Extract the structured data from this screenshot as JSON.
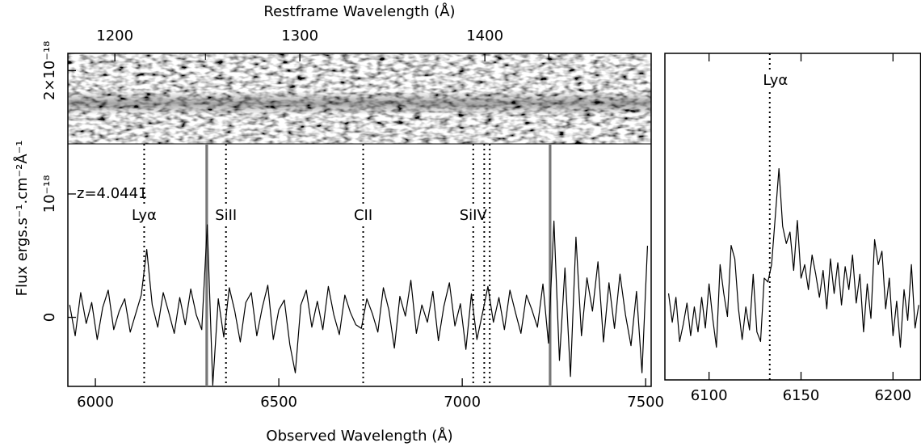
{
  "chart_data": [
    {
      "type": "line",
      "x_label": "Observed Wavelength (Å)",
      "y_label": "Flux ergs.s⁻¹.cm⁻²Å⁻¹",
      "x2_label": "Restframe Wavelength (Å)",
      "xlim": [
        5925,
        7515
      ],
      "xticks": [
        6000,
        6500,
        7000,
        7500
      ],
      "x2lim": [
        1174.6,
        1489.9
      ],
      "x2ticks": [
        1200,
        1300,
        1400
      ],
      "ylim": [
        -5.6e-19,
        2.14e-18
      ],
      "yticks": [
        0,
        {
          "value": 1e-18,
          "label": "10⁻¹⁸"
        },
        {
          "value": 2e-18,
          "label": "2×10⁻¹⁸"
        }
      ],
      "redshift_label": "z=4.0441",
      "color": "#000000",
      "x": [
        5930,
        5945,
        5960,
        5975,
        5990,
        6005,
        6020,
        6035,
        6050,
        6065,
        6080,
        6095,
        6110,
        6125,
        6140,
        6155,
        6170,
        6185,
        6200,
        6215,
        6230,
        6245,
        6260,
        6275,
        6290,
        6305,
        6320,
        6335,
        6350,
        6365,
        6380,
        6395,
        6410,
        6425,
        6440,
        6455,
        6470,
        6485,
        6500,
        6515,
        6530,
        6545,
        6560,
        6575,
        6590,
        6605,
        6620,
        6635,
        6650,
        6665,
        6680,
        6695,
        6710,
        6725,
        6740,
        6755,
        6770,
        6785,
        6800,
        6815,
        6830,
        6845,
        6860,
        6875,
        6890,
        6905,
        6920,
        6935,
        6950,
        6965,
        6980,
        6995,
        7010,
        7025,
        7040,
        7055,
        7070,
        7085,
        7100,
        7115,
        7130,
        7145,
        7160,
        7175,
        7190,
        7205,
        7220,
        7235,
        7250,
        7265,
        7280,
        7295,
        7310,
        7325,
        7340,
        7355,
        7370,
        7385,
        7400,
        7415,
        7430,
        7445,
        7460,
        7475,
        7490,
        7505
      ],
      "values": [
        1e-19,
        -1.5e-19,
        2e-19,
        -5e-20,
        1.2e-19,
        -1.8e-19,
        8e-20,
        2.2e-19,
        -1e-19,
        5e-20,
        1.5e-19,
        -1.2e-19,
        3e-20,
        1.8e-19,
        5.5e-19,
        1e-19,
        -8e-20,
        2e-19,
        4e-20,
        -1.3e-19,
        1.6e-19,
        -6e-20,
        2.3e-19,
        2e-20,
        -1e-19,
        7.5e-19,
        -5.5e-19,
        1.5e-19,
        -1.6e-19,
        2.4e-19,
        5e-20,
        -2e-19,
        1.2e-19,
        2e-19,
        -1.5e-19,
        8e-20,
        2.6e-19,
        -1.8e-19,
        6e-20,
        1.4e-19,
        -2.2e-19,
        -4.5e-19,
        1e-19,
        2.2e-19,
        -8e-20,
        1.3e-19,
        -1e-19,
        2.5e-19,
        2e-20,
        -1.4e-19,
        1.8e-19,
        4e-20,
        -6e-20,
        -9e-20,
        1.5e-19,
        3e-20,
        -1.2e-19,
        2.4e-19,
        6e-20,
        -2.5e-19,
        1.7e-19,
        1e-20,
        3e-19,
        -1.3e-19,
        1e-19,
        -4e-20,
        2.1e-19,
        -1.9e-19,
        9e-20,
        2.8e-19,
        -7e-20,
        1.1e-19,
        -2.6e-19,
        1.9e-19,
        -1.8e-19,
        3e-20,
        2.5e-19,
        -4e-20,
        1.6e-19,
        -1e-19,
        2.2e-19,
        4e-20,
        -1.3e-19,
        1.8e-19,
        6e-20,
        -8e-20,
        2.7e-19,
        -2.1e-19,
        7.8e-19,
        -3.5e-19,
        4e-19,
        -4.8e-19,
        6.5e-19,
        -1.5e-19,
        3.2e-19,
        5e-20,
        4.5e-19,
        -2e-19,
        2.8e-19,
        -9e-20,
        3.5e-19,
        2e-20,
        -2.3e-19,
        2.1e-19,
        -4.5e-19,
        5.8e-19
      ],
      "markers": [
        {
          "label": "Lyα",
          "x": 6133
        },
        {
          "label": "SiII",
          "x": 6356
        },
        {
          "label": "CII",
          "x": 6730
        },
        {
          "label": "SiIV",
          "x": 7030
        },
        {
          "x": 7060
        },
        {
          "x": 7075
        }
      ],
      "masked_regions": [
        [
          6300,
          6307
        ],
        [
          7236,
          7243
        ]
      ]
    },
    {
      "type": "line",
      "xlim": [
        6076,
        6215
      ],
      "xticks": [
        6100,
        6150,
        6200
      ],
      "ylim": [
        -3.5e-19,
        1.35e-18
      ],
      "color": "#000000",
      "x": [
        6078,
        6080,
        6082,
        6084,
        6086,
        6088,
        6090,
        6092,
        6094,
        6096,
        6098,
        6100,
        6102,
        6104,
        6106,
        6108,
        6110,
        6112,
        6114,
        6116,
        6118,
        6120,
        6122,
        6124,
        6126,
        6128,
        6130,
        6132,
        6134,
        6136,
        6138,
        6140,
        6142,
        6144,
        6146,
        6148,
        6150,
        6152,
        6154,
        6156,
        6158,
        6160,
        6162,
        6164,
        6166,
        6168,
        6170,
        6172,
        6174,
        6176,
        6178,
        6180,
        6182,
        6184,
        6186,
        6188,
        6190,
        6192,
        6194,
        6196,
        6198,
        6200,
        6202,
        6204,
        6206,
        6208,
        6210,
        6212,
        6214
      ],
      "values": [
        1e-19,
        -5e-20,
        8e-20,
        -1.5e-19,
        -6e-20,
        5e-20,
        -1.2e-19,
        3e-20,
        -1e-19,
        8e-20,
        -8e-20,
        1.5e-19,
        -3e-20,
        -1.8e-19,
        2.5e-19,
        1e-19,
        -2e-20,
        3.5e-19,
        2.8e-19,
        2e-20,
        -1.4e-19,
        3e-20,
        -9e-20,
        2e-19,
        -1e-19,
        -1.5e-19,
        1.8e-19,
        1.6e-19,
        2.5e-19,
        5e-19,
        7.5e-19,
        4.5e-19,
        3.6e-19,
        4.2e-19,
        2.2e-19,
        4.8e-19,
        1.8e-19,
        2.5e-19,
        1.2e-19,
        3e-19,
        2e-19,
        8e-20,
        2.2e-19,
        2e-20,
        2.8e-19,
        1e-19,
        2.6e-19,
        4e-20,
        2.4e-19,
        1.2e-19,
        3e-19,
        5e-20,
        2e-19,
        -1e-19,
        1.5e-19,
        -3e-20,
        3.8e-19,
        2.5e-19,
        3.2e-19,
        2e-20,
        1.8e-19,
        -1.2e-19,
        6e-20,
        -1.8e-19,
        1.2e-19,
        -4e-20,
        2.5e-19,
        -8e-20,
        4e-20
      ],
      "markers": [
        {
          "label": "Lyα",
          "x": 6133
        }
      ]
    }
  ]
}
